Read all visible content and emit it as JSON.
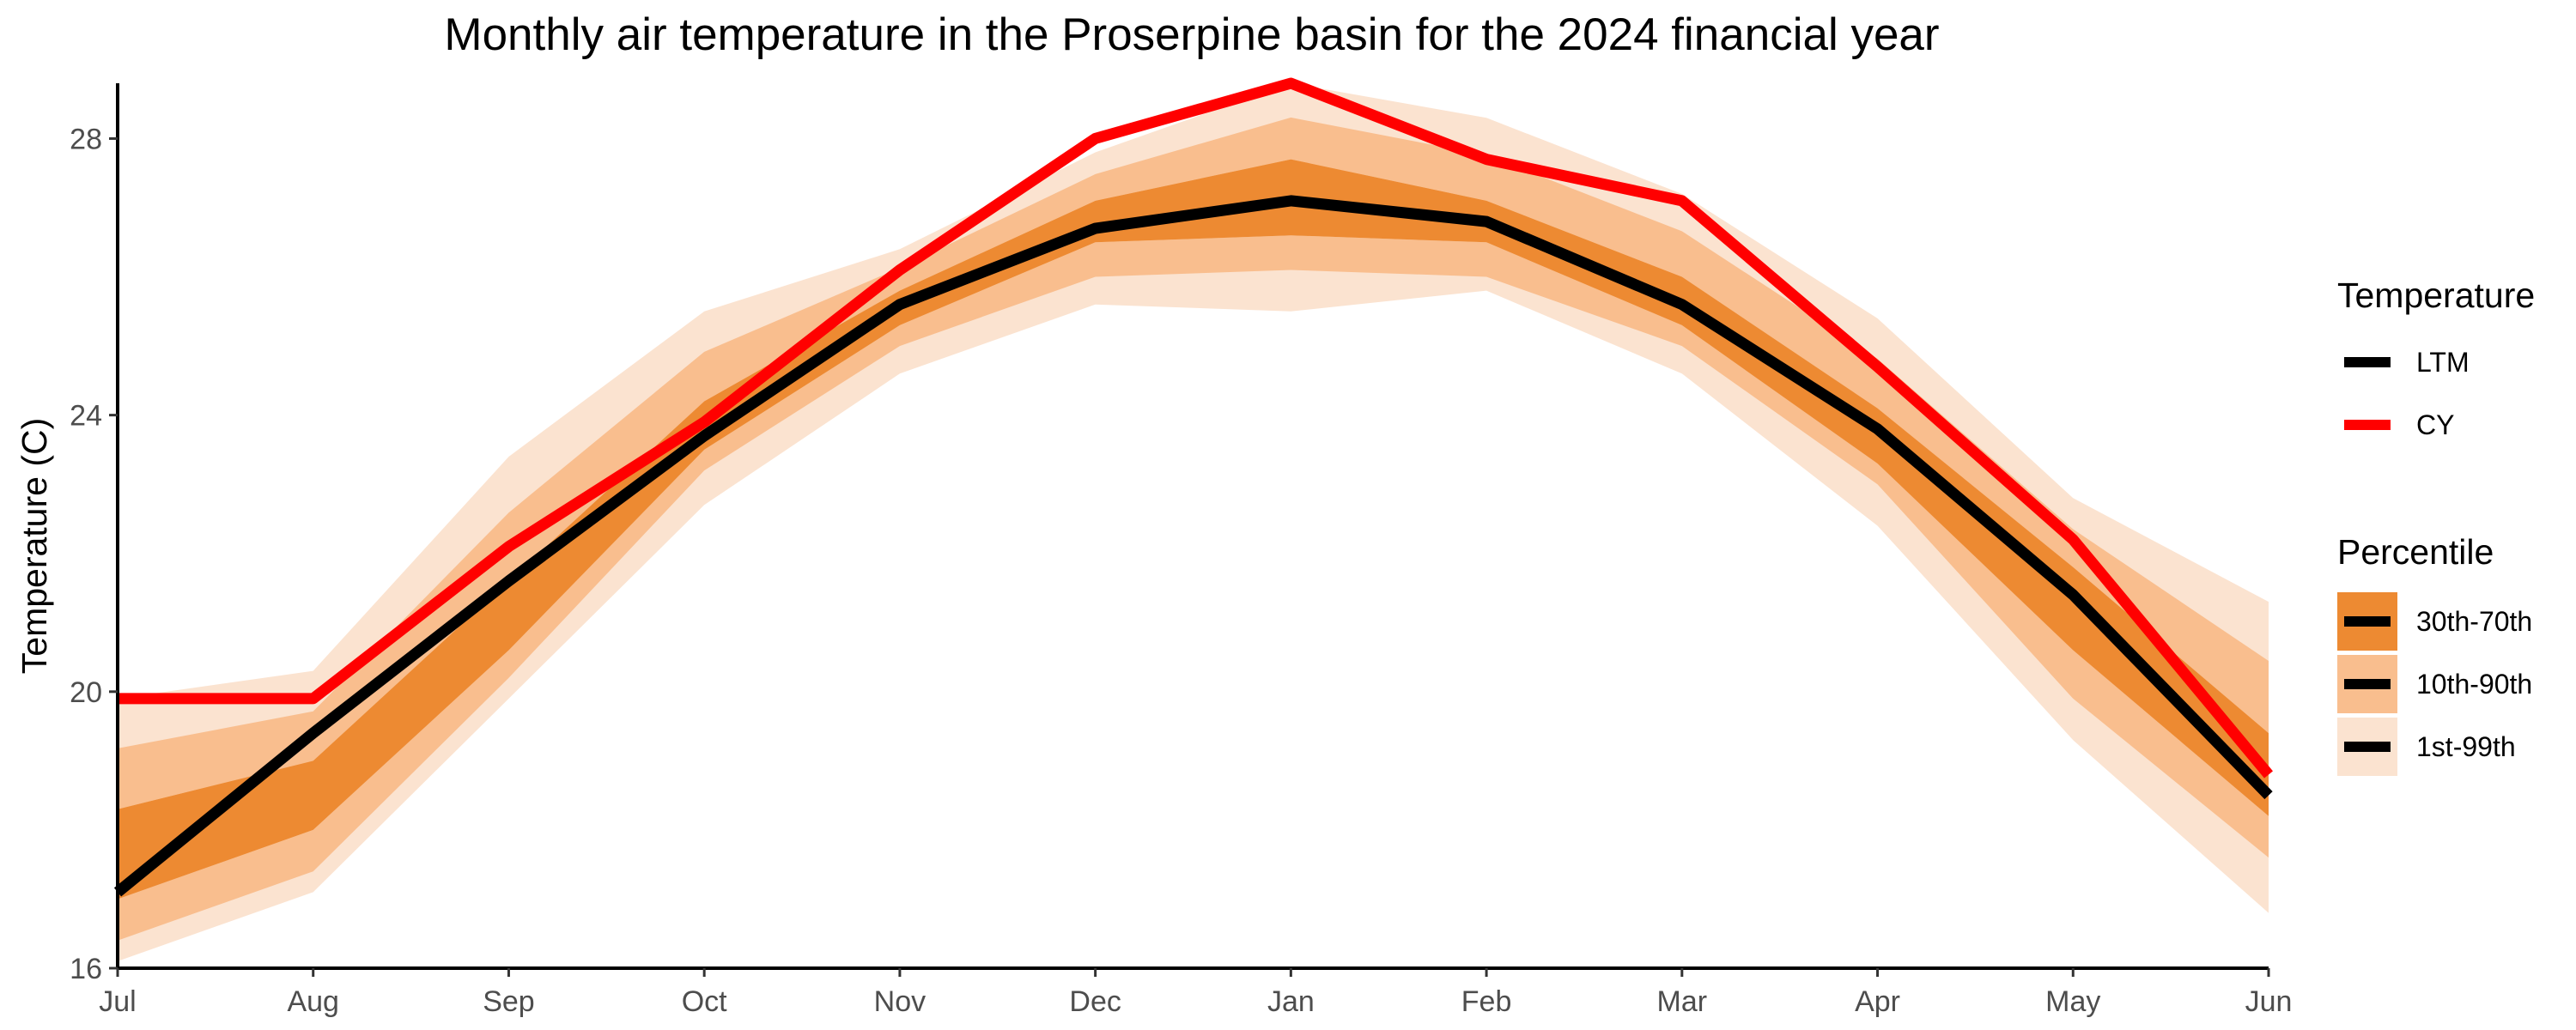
{
  "chart_data": {
    "type": "line",
    "title": "Monthly air temperature in the Proserpine basin for the 2024 financial year",
    "xlabel": "",
    "ylabel": "Temperature (C)",
    "categories": [
      "Jul",
      "Aug",
      "Sep",
      "Oct",
      "Nov",
      "Dec",
      "Jan",
      "Feb",
      "Mar",
      "Apr",
      "May",
      "Jun"
    ],
    "ylim": [
      16,
      28.8
    ],
    "yticks": [
      16,
      20,
      24,
      28
    ],
    "grid": false,
    "series": [
      {
        "name": "LTM",
        "color": "#000000",
        "values": [
          17.1,
          19.4,
          21.6,
          23.7,
          25.6,
          26.7,
          27.1,
          26.8,
          25.6,
          23.8,
          21.4,
          18.5
        ]
      },
      {
        "name": "CY",
        "color": "#ff0000",
        "values": [
          19.9,
          19.9,
          22.1,
          23.9,
          26.1,
          28.0,
          28.8,
          27.7,
          27.1,
          24.7,
          22.2,
          18.8
        ]
      }
    ],
    "bands": [
      {
        "name": "1st-99th",
        "color": "#fbe3d0",
        "lower": [
          16.1,
          17.1,
          19.9,
          22.7,
          24.6,
          25.6,
          25.5,
          25.8,
          24.6,
          22.4,
          19.3,
          16.8
        ],
        "upper": [
          19.9,
          20.3,
          23.4,
          25.5,
          26.4,
          27.8,
          28.8,
          28.3,
          27.2,
          25.4,
          22.8,
          21.3
        ]
      },
      {
        "name": "10th-90th",
        "color": "#f9be8e",
        "lower": [
          16.4,
          17.4,
          20.2,
          23.2,
          25.0,
          26.0,
          26.1,
          26.0,
          25.0,
          23.0,
          19.9,
          17.6
        ]
      },
      {
        "name": "30th-70th",
        "color": "#ed8a32",
        "lower": [
          17.0,
          18.0,
          20.6,
          23.5,
          25.3,
          26.5,
          26.6,
          26.5,
          25.3,
          23.3,
          20.6,
          18.2
        ],
        "upper": [
          18.3,
          19.0,
          21.6,
          24.2,
          25.8,
          27.1,
          27.7,
          27.1,
          26.0,
          24.1,
          21.8,
          19.4
        ]
      }
    ],
    "legend": {
      "placement": "right",
      "groups": [
        {
          "title": "Temperature",
          "items": [
            "LTM",
            "CY"
          ]
        },
        {
          "title": "Percentile",
          "items": [
            "30th-70th",
            "10th-90th",
            "1st-99th"
          ]
        }
      ]
    }
  }
}
